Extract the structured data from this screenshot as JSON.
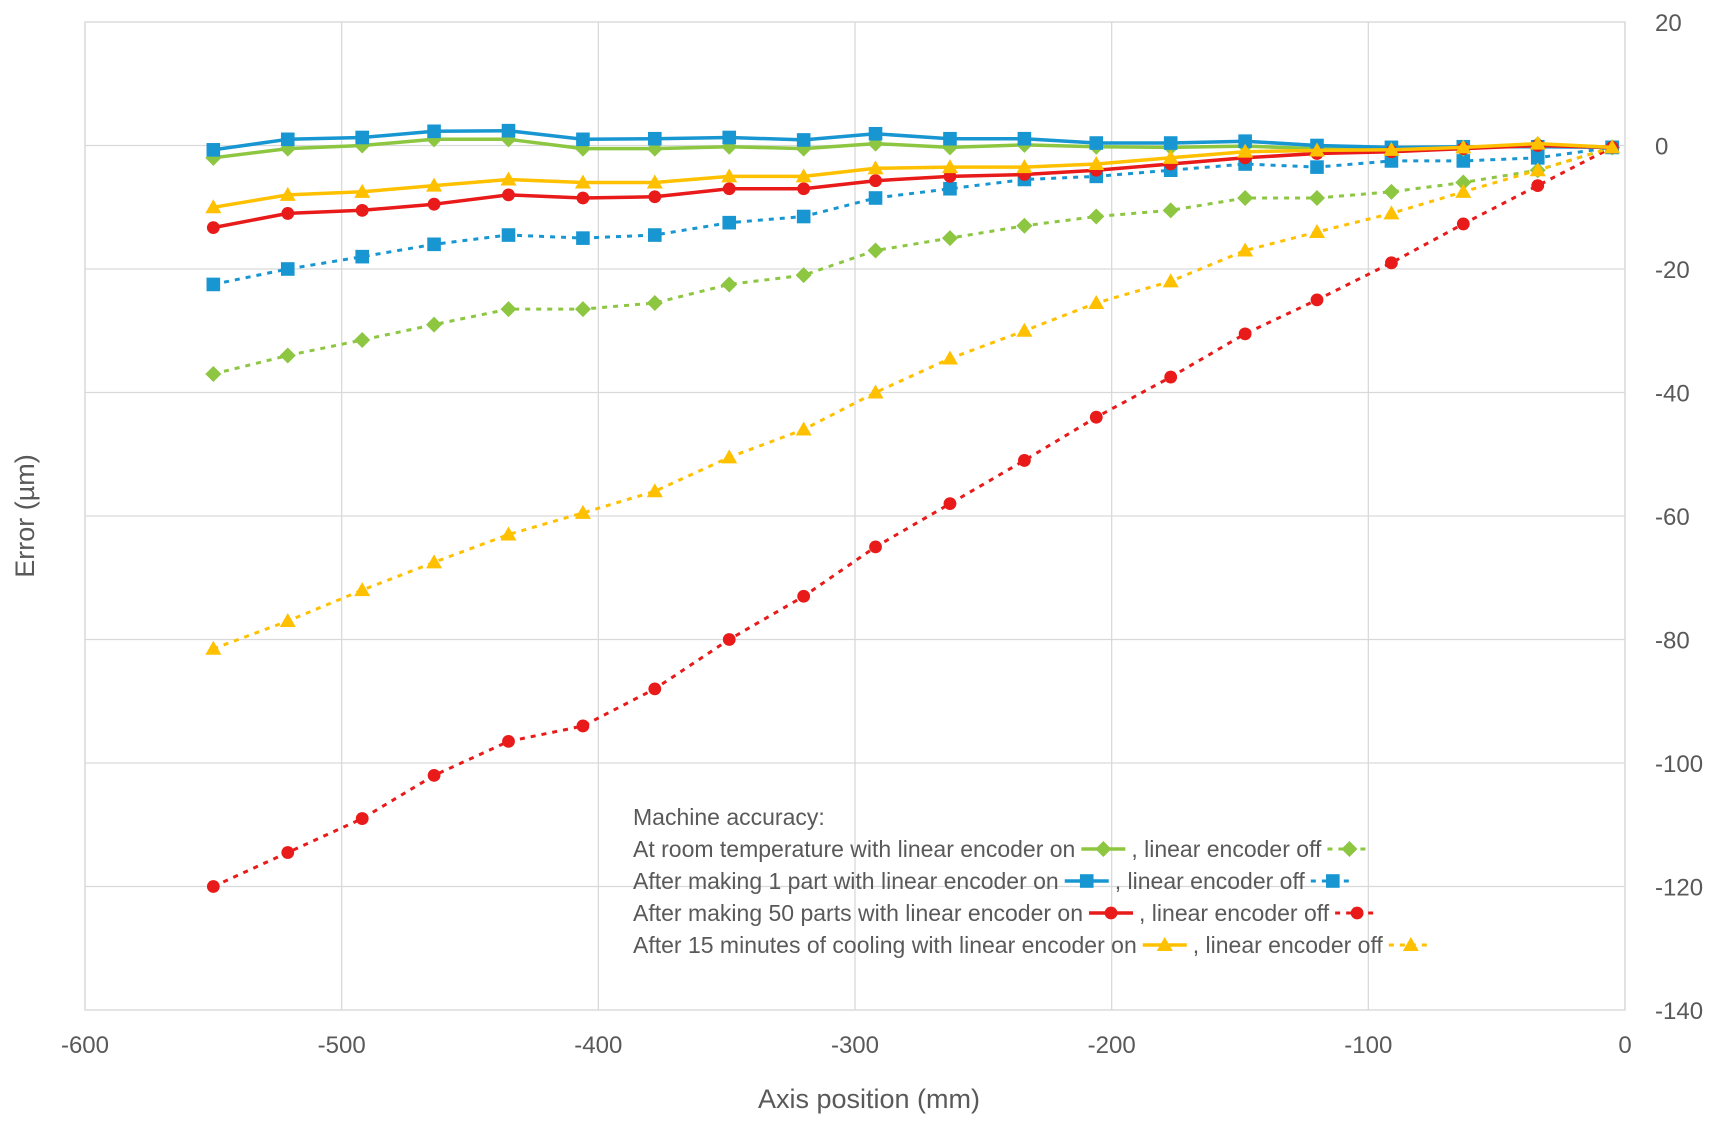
{
  "chart_data": {
    "type": "line",
    "title": "",
    "xlabel": "Axis position (mm)",
    "ylabel": "Error (µm)",
    "xlim": [
      -600,
      0
    ],
    "ylim": [
      -140,
      20
    ],
    "x_ticks": [
      -600,
      -500,
      -400,
      -300,
      -200,
      -100,
      0
    ],
    "y_ticks": [
      20,
      0,
      -20,
      -40,
      -60,
      -80,
      -100,
      -120,
      -140
    ],
    "y_axis_side": "right",
    "grid": true,
    "legend": {
      "placement": "bottom-right",
      "title": "Machine accuracy:",
      "rows": [
        {
          "label_on": "At room temperature with linear encoder on",
          "label_off": ", linear encoder off",
          "series_on": 0,
          "series_off": 1
        },
        {
          "label_on": "After making 1 part with linear encoder on",
          "label_off": ", linear encoder off",
          "series_on": 2,
          "series_off": 3
        },
        {
          "label_on": "After making 50 parts with linear encoder on",
          "label_off": ", linear encoder off",
          "series_on": 4,
          "series_off": 5
        },
        {
          "label_on": "After 15 minutes of cooling with linear encoder on",
          "label_off": ", linear encoder off",
          "series_on": 6,
          "series_off": 7
        }
      ]
    },
    "x": [
      -550,
      -521,
      -492,
      -464,
      -435,
      -406,
      -378,
      -349,
      -320,
      -292,
      -263,
      -234,
      -206,
      -177,
      -148,
      -120,
      -91,
      -63,
      -34,
      -5
    ],
    "series": [
      {
        "color": "#8dc641",
        "marker": "diamond",
        "dash": false,
        "values": [
          -2,
          -0.5,
          0,
          1,
          1,
          -0.5,
          -0.5,
          -0.2,
          -0.5,
          0.3,
          -0.3,
          0.1,
          -0.2,
          -0.3,
          -0.1,
          -0.5,
          -0.8,
          -0.5,
          0.2,
          -0.3
        ]
      },
      {
        "color": "#8dc641",
        "marker": "diamond",
        "dash": true,
        "values": [
          -37,
          -34,
          -31.5,
          -29,
          -26.5,
          -26.5,
          -25.5,
          -22.5,
          -21,
          -17,
          -15,
          -13,
          -11.5,
          -10.5,
          -8.5,
          -8.5,
          -7.5,
          -6,
          -4,
          -0.3
        ]
      },
      {
        "color": "#1896d2",
        "marker": "square",
        "dash": false,
        "values": [
          -0.7,
          1,
          1.3,
          2.3,
          2.4,
          1,
          1.1,
          1.3,
          0.9,
          1.9,
          1.1,
          1.1,
          0.4,
          0.4,
          0.7,
          0,
          -0.3,
          -0.2,
          -0.2,
          -0.3
        ]
      },
      {
        "color": "#1896d2",
        "marker": "square",
        "dash": true,
        "values": [
          -22.5,
          -20,
          -18,
          -16,
          -14.5,
          -15,
          -14.5,
          -12.5,
          -11.5,
          -8.5,
          -7,
          -5.5,
          -5,
          -4,
          -3,
          -3.5,
          -2.5,
          -2.5,
          -2,
          -0.3
        ]
      },
      {
        "color": "#e81a1a",
        "marker": "circle",
        "dash": false,
        "values": [
          -13.3,
          -11,
          -10.5,
          -9.5,
          -8,
          -8.5,
          -8.3,
          -7,
          -7,
          -5.7,
          -5,
          -4.7,
          -4,
          -3,
          -2,
          -1.3,
          -1,
          -0.5,
          0,
          -0.3
        ]
      },
      {
        "color": "#e81a1a",
        "marker": "circle",
        "dash": true,
        "values": [
          -120,
          -114.5,
          -109,
          -102,
          -96.5,
          -94,
          -88,
          -80,
          -73,
          -65,
          -58,
          -51,
          -44,
          -37.5,
          -30.5,
          -25,
          -19,
          -12.7,
          -6.5,
          -0.3
        ]
      },
      {
        "color": "#ffc000",
        "marker": "triangle",
        "dash": false,
        "values": [
          -10,
          -8,
          -7.5,
          -6.5,
          -5.5,
          -6,
          -6,
          -5,
          -5,
          -3.7,
          -3.5,
          -3.5,
          -3,
          -2,
          -1,
          -0.8,
          -0.7,
          -0.3,
          0.3,
          -0.3
        ]
      },
      {
        "color": "#ffc000",
        "marker": "triangle",
        "dash": true,
        "values": [
          -81.5,
          -77,
          -72,
          -67.5,
          -63,
          -59.5,
          -56,
          -50.5,
          -46,
          -40,
          -34.5,
          -30,
          -25.5,
          -22,
          -17,
          -14,
          -11,
          -7.5,
          -4,
          -0.3
        ]
      }
    ]
  }
}
